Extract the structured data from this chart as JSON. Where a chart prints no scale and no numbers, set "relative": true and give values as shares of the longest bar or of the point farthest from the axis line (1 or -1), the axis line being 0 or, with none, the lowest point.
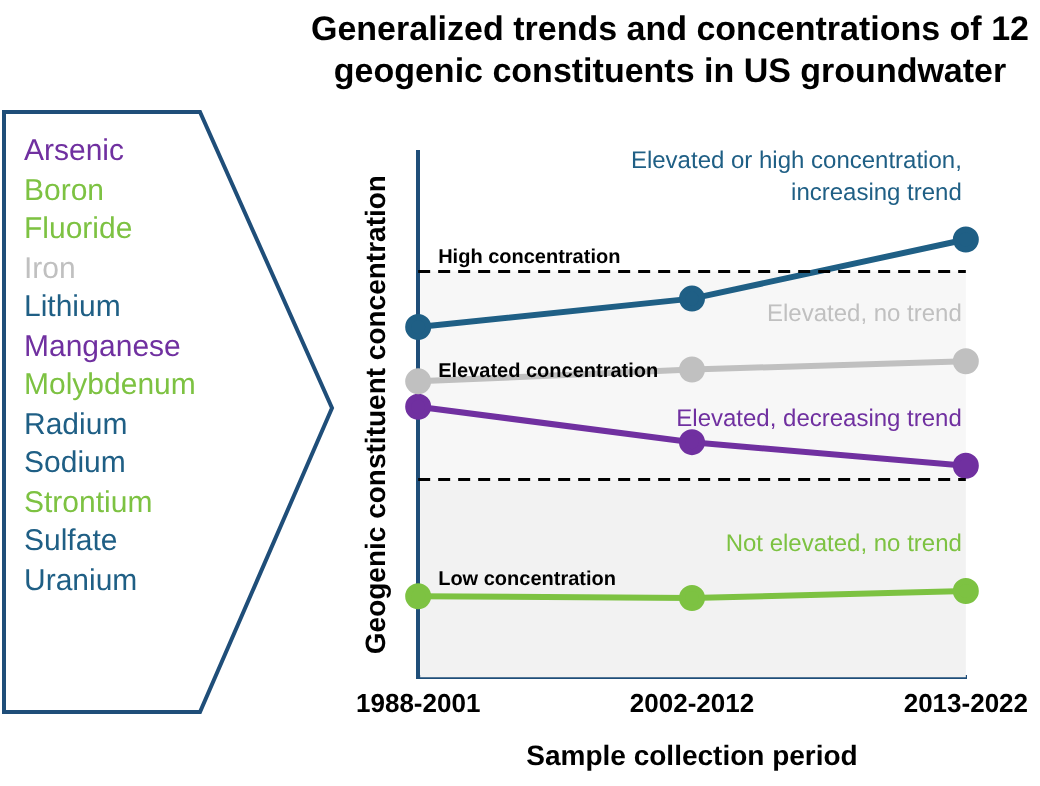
{
  "chart_data": {
    "type": "line",
    "title": "Generalized trends and concentrations of 12 geogenic constituents in US groundwater",
    "xlabel": "Sample collection period",
    "ylabel": "Geogenic constituent concentration",
    "categories": [
      "1988-2001",
      "2002-2012",
      "2013-2022"
    ],
    "relative": true,
    "marker": "circle",
    "grid": false,
    "legend": false,
    "series": [
      {
        "name": "Elevated or high concentration, increasing trend",
        "color": "#1f5f85",
        "values": [
          0.8,
          0.865,
          1
        ]
      },
      {
        "name": "Elevated, no trend",
        "color": "#c0c0c0",
        "values": [
          0.676,
          0.703,
          0.722
        ]
      },
      {
        "name": "Elevated, decreasing trend",
        "color": "#7030a0",
        "values": [
          0.618,
          0.537,
          0.483
        ]
      },
      {
        "name": "Not elevated, no trend",
        "color": "#7dc242",
        "values": [
          0.185,
          0.181,
          0.197
        ]
      }
    ],
    "ref_lines": [
      {
        "axis": "y",
        "value": 0.927,
        "color": "#000000",
        "line_style": "dashed",
        "label": "High concentration"
      },
      {
        "axis": "y",
        "value": 0.452,
        "color": "#000000",
        "line_style": "dashed"
      }
    ],
    "bands": [
      {
        "axis": "y",
        "from": 0,
        "to": 0.452,
        "label": "Low concentration",
        "color": "#f2f2f2"
      },
      {
        "axis": "y",
        "from": 0.452,
        "to": 0.927,
        "label": "Elevated concentration",
        "color": "#f7f7f7"
      }
    ],
    "annotations": [
      "Arsenic",
      "Boron",
      "Fluoride",
      "Iron",
      "Lithium",
      "Manganese",
      "Molybdenum",
      "Radium",
      "Sodium",
      "Strontium",
      "Sulfate",
      "Uranium"
    ]
  }
}
